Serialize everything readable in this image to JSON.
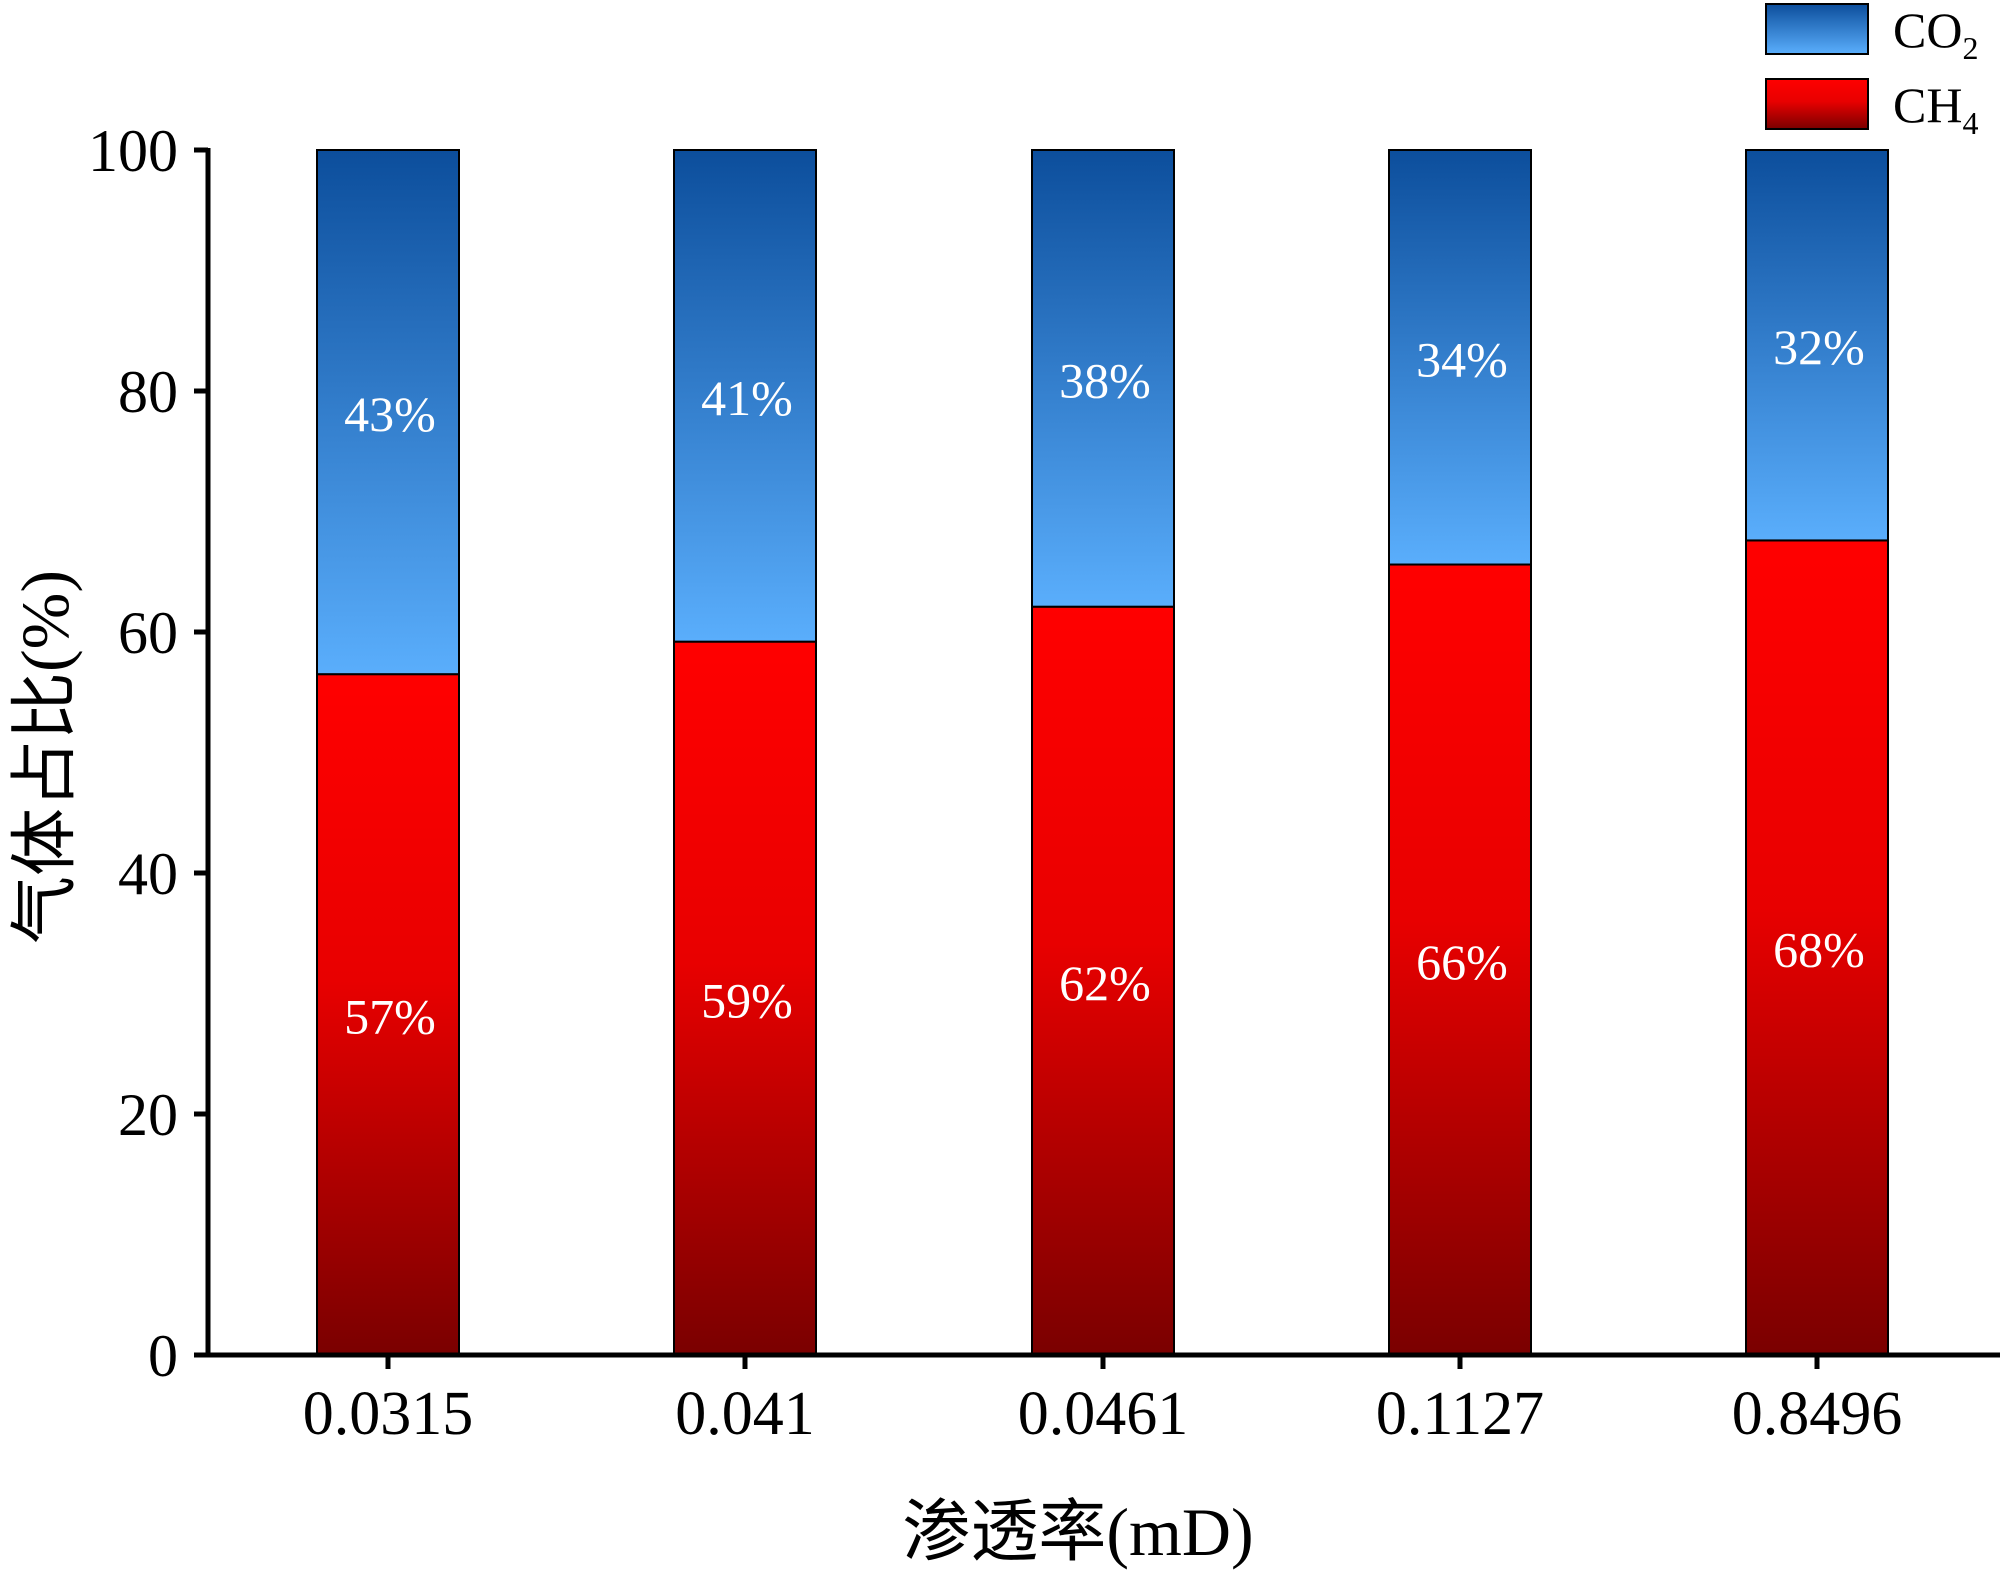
{
  "chart_data": {
    "type": "bar",
    "stacked": true,
    "categories": [
      "0.0315",
      "0.041",
      "0.0461",
      "0.1127",
      "0.8496"
    ],
    "series": [
      {
        "name": "CH4",
        "name_main": "CH",
        "name_sub": "4",
        "values": [
          56.5,
          59.2,
          62.1,
          65.6,
          67.6
        ],
        "labels": [
          "57%",
          "59%",
          "62%",
          "66%",
          "68%"
        ],
        "color_top": "#ff0000",
        "color_bottom": "#7a0000"
      },
      {
        "name": "CO2",
        "name_main": "CO",
        "name_sub": "2",
        "values": [
          43.5,
          40.8,
          37.9,
          34.4,
          32.4
        ],
        "labels": [
          "43%",
          "41%",
          "38%",
          "34%",
          "32%"
        ],
        "color_top": "#0c4e9c",
        "color_bottom": "#5aaefc"
      }
    ],
    "xlabel": "渗透率(mD)",
    "ylabel": "气体占比(%)",
    "ylim": [
      0,
      100
    ],
    "yticks": [
      "0",
      "20",
      "40",
      "60",
      "80",
      "100"
    ],
    "legend_position": "top-right"
  }
}
